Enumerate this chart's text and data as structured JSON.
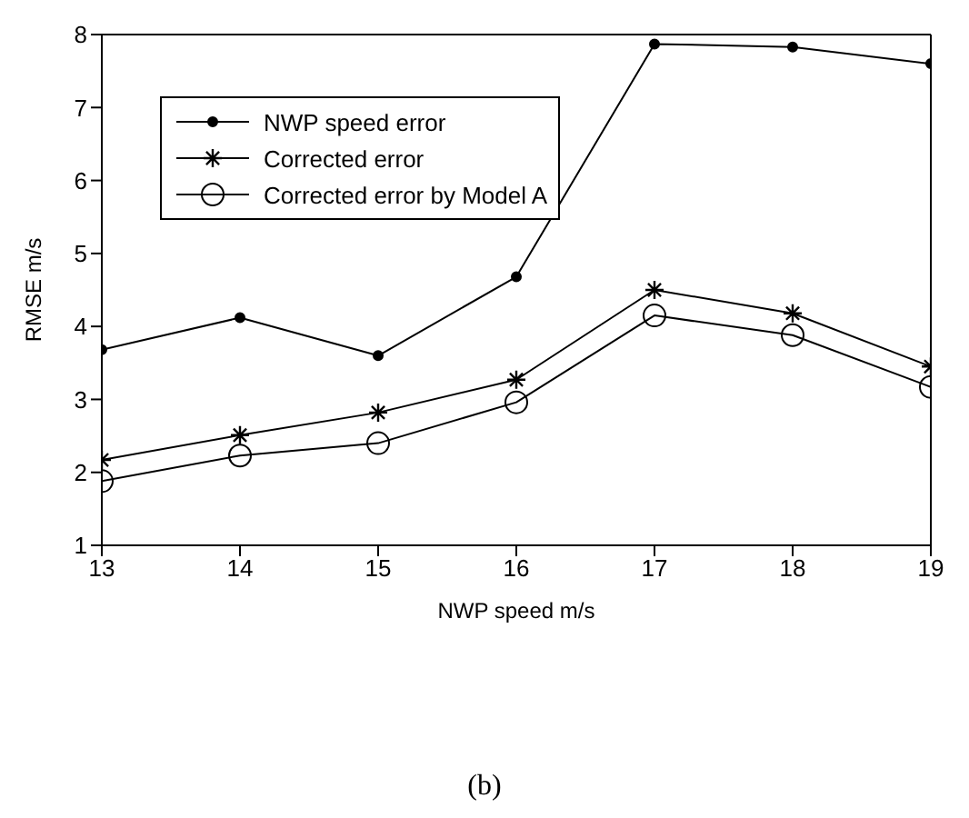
{
  "chart_data": {
    "type": "line",
    "xlabel": "NWP speed m/s",
    "ylabel": "RMSE m/s",
    "x": [
      13,
      14,
      15,
      16,
      17,
      18,
      19
    ],
    "series": [
      {
        "name": "NWP speed error",
        "color": "#000000",
        "marker": "circle",
        "values": [
          3.68,
          4.12,
          3.6,
          4.68,
          7.87,
          7.83,
          7.6
        ]
      },
      {
        "name": "Corrected error",
        "color": "#000000",
        "marker": "cross",
        "values": [
          2.17,
          2.51,
          2.82,
          3.27,
          4.5,
          4.18,
          3.45
        ]
      },
      {
        "name": "Corrected error by Model A",
        "color": "#000000",
        "marker": "circle-open",
        "values": [
          1.88,
          2.23,
          2.4,
          2.96,
          4.15,
          3.88,
          3.17
        ]
      }
    ],
    "xlim": [
      13,
      19
    ],
    "xticks": [
      13,
      14,
      15,
      16,
      17,
      18,
      19
    ],
    "ylim": [
      1,
      8
    ],
    "yticks": [
      1,
      2,
      3,
      4,
      5,
      6,
      7,
      8
    ],
    "grid": false,
    "legend": "top left",
    "line_style": "solid",
    "annotations": [
      "(b)"
    ]
  }
}
